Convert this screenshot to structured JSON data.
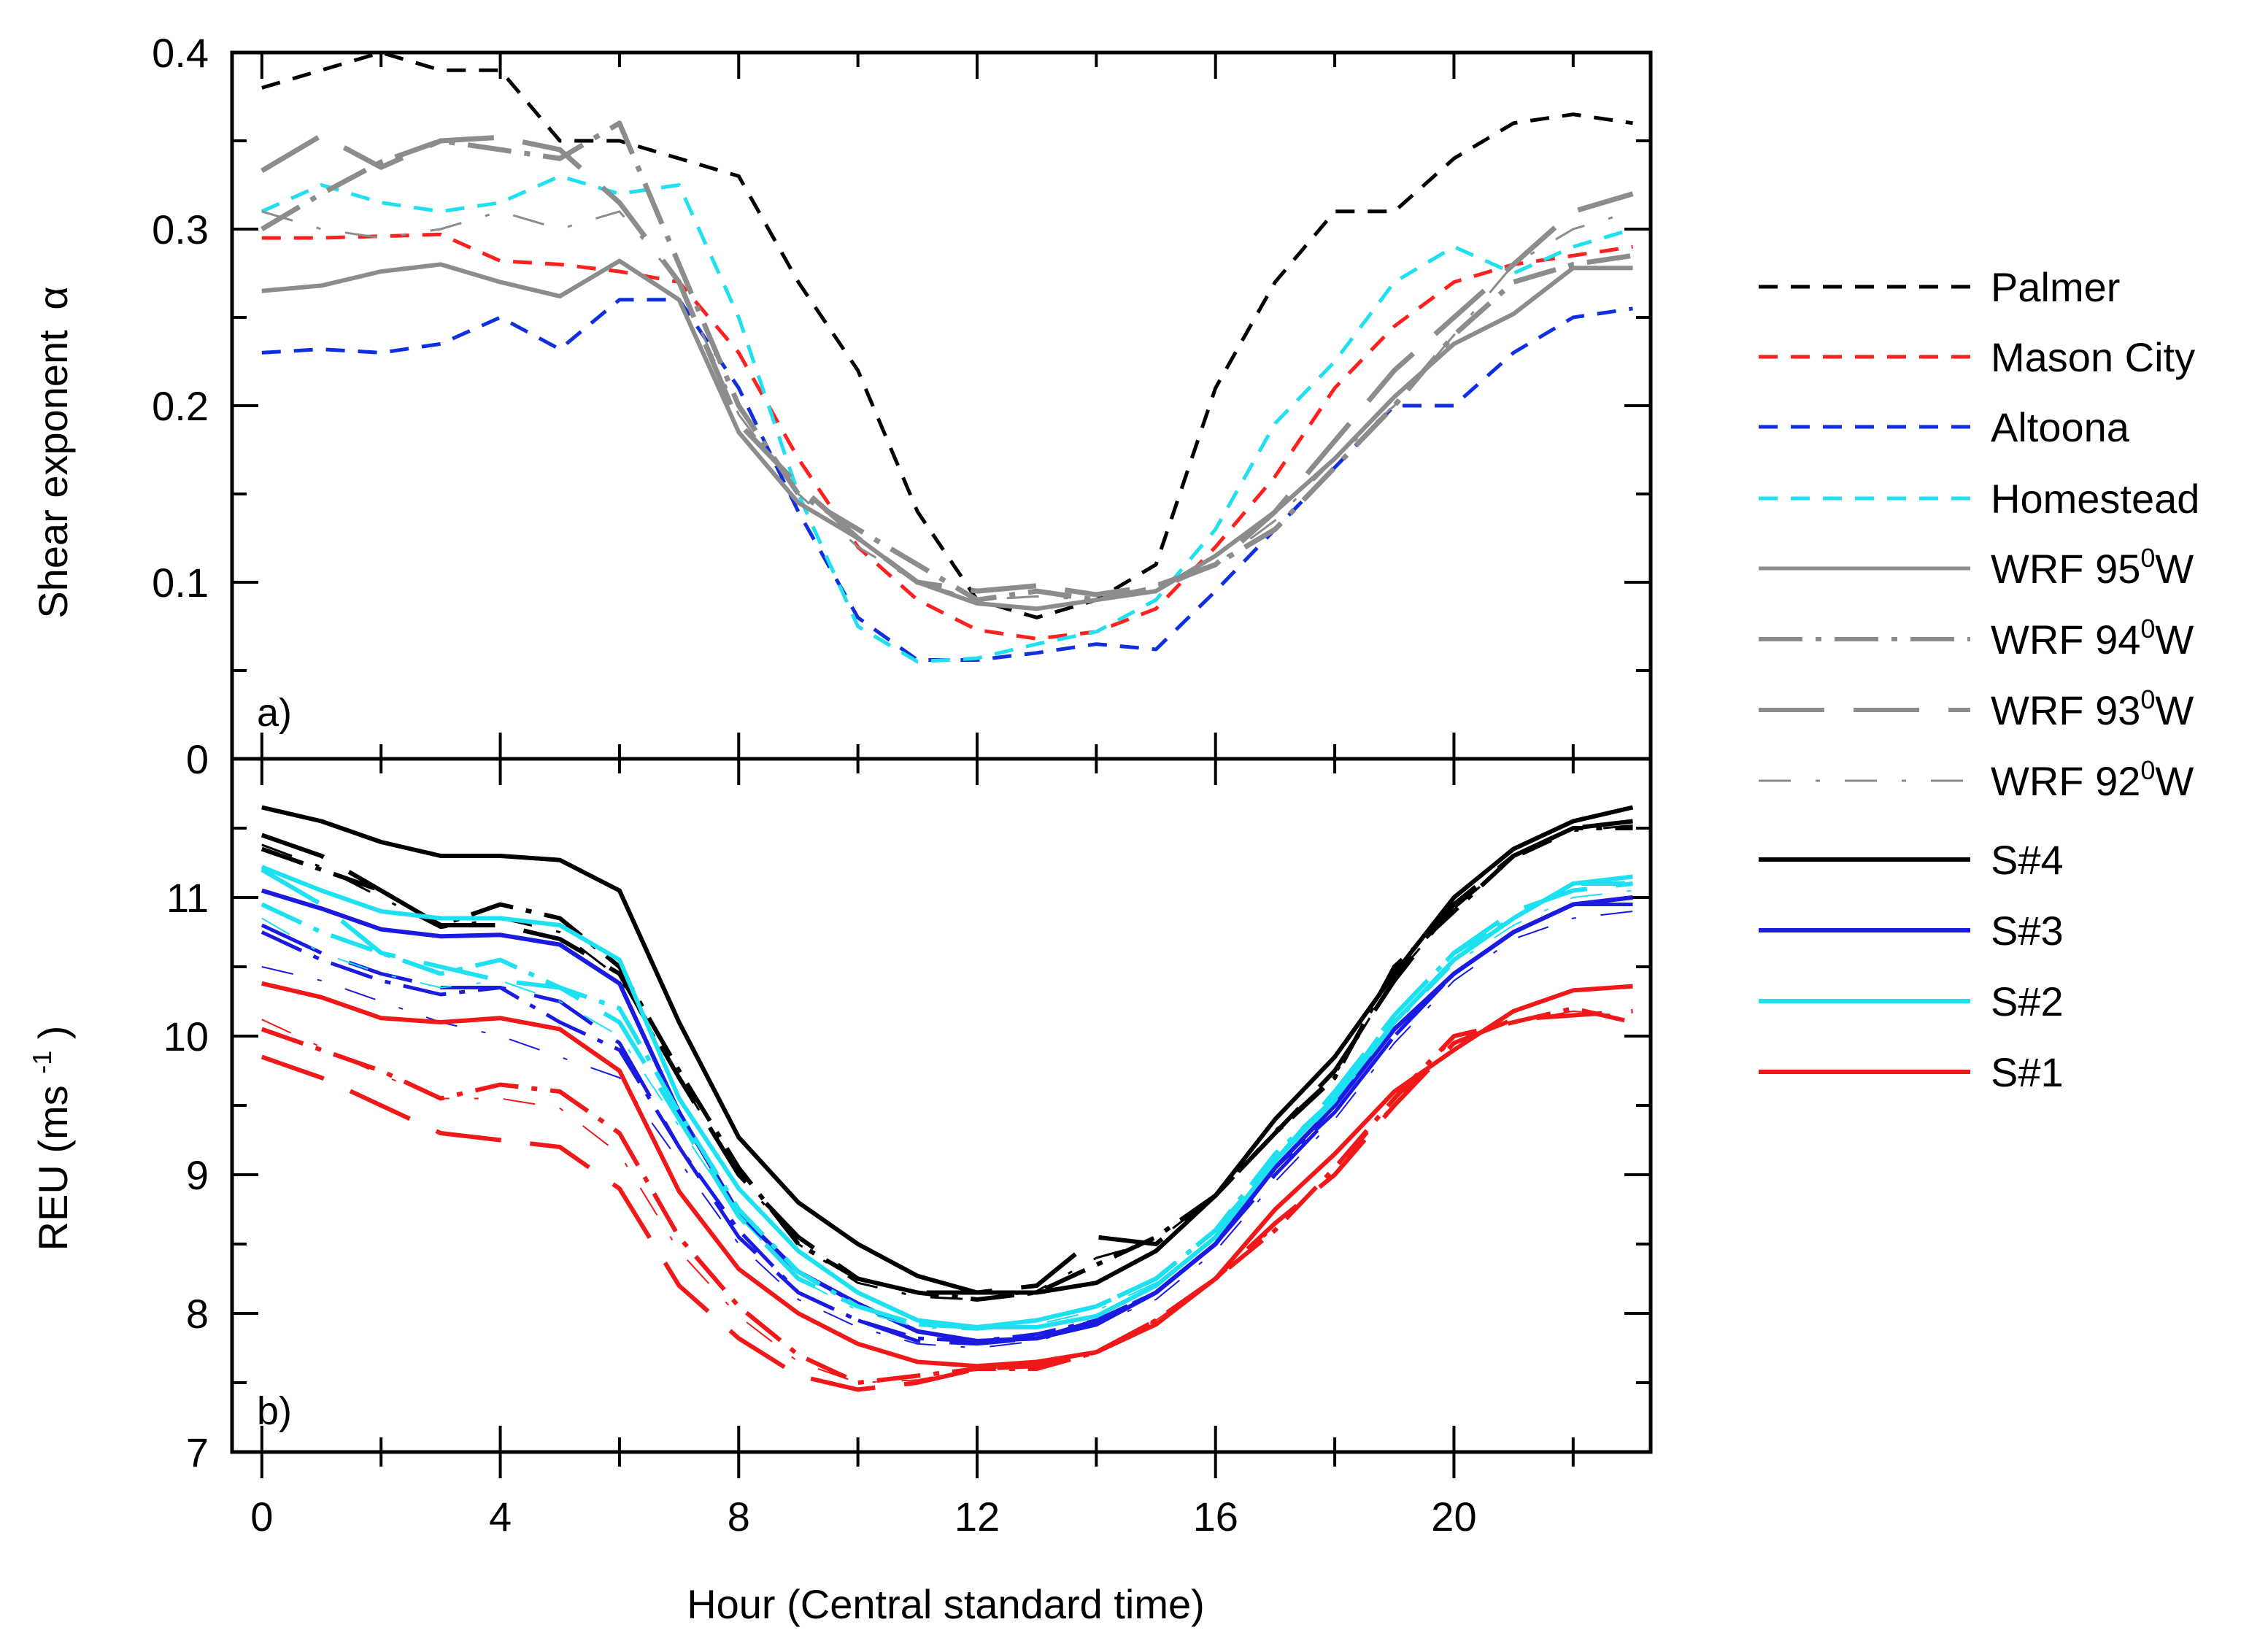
{
  "chart_data": [
    {
      "id": "a",
      "type": "line",
      "panel_label": "a)",
      "ylabel": "Shear exponent α",
      "xlabel": "Hour (Central standard time)",
      "xlim": [
        -0.5,
        23.3
      ],
      "ylim": [
        0,
        0.4
      ],
      "yticks": [
        "0",
        "0.1",
        "0.2",
        "0.3",
        "0.4"
      ],
      "x": [
        0,
        1,
        2,
        3,
        4,
        5,
        6,
        7,
        8,
        9,
        10,
        11,
        12,
        13,
        14,
        15,
        16,
        17,
        18,
        19,
        20,
        21,
        22,
        23
      ],
      "series": [
        {
          "name": "Palmer",
          "color": "#000000",
          "style": "dash",
          "values": [
            0.38,
            0.39,
            0.4,
            0.39,
            0.39,
            0.35,
            0.35,
            0.34,
            0.33,
            0.27,
            0.22,
            0.14,
            0.09,
            0.08,
            0.09,
            0.11,
            0.21,
            0.27,
            0.31,
            0.31,
            0.34,
            0.36,
            0.365,
            0.36
          ]
        },
        {
          "name": "Mason City",
          "color": "#ff2020",
          "style": "dash",
          "values": [
            0.295,
            0.295,
            0.296,
            0.297,
            0.282,
            0.28,
            0.276,
            0.27,
            0.23,
            0.17,
            0.12,
            0.09,
            0.073,
            0.068,
            0.072,
            0.085,
            0.12,
            0.16,
            0.21,
            0.245,
            0.27,
            0.28,
            0.285,
            0.29
          ]
        },
        {
          "name": "Altoona",
          "color": "#1030e0",
          "style": "dash",
          "values": [
            0.23,
            0.232,
            0.23,
            0.235,
            0.25,
            0.232,
            0.26,
            0.26,
            0.21,
            0.14,
            0.08,
            0.056,
            0.056,
            0.06,
            0.065,
            0.062,
            0.095,
            0.13,
            0.165,
            0.2,
            0.2,
            0.23,
            0.25,
            0.255
          ]
        },
        {
          "name": "Homestead",
          "color": "#20e0f0",
          "style": "dash",
          "values": [
            0.31,
            0.325,
            0.315,
            0.31,
            0.315,
            0.33,
            0.32,
            0.325,
            0.25,
            0.15,
            0.075,
            0.055,
            0.057,
            0.065,
            0.072,
            0.09,
            0.13,
            0.19,
            0.225,
            0.27,
            0.29,
            0.275,
            0.29,
            0.3
          ]
        },
        {
          "name": "WRF 95°W",
          "color": "#8c8c8c",
          "style": "solid",
          "width": 6,
          "values": [
            0.265,
            0.268,
            0.276,
            0.28,
            0.27,
            0.262,
            0.282,
            0.26,
            0.185,
            0.145,
            0.125,
            0.1,
            0.088,
            0.085,
            0.09,
            0.095,
            0.115,
            0.14,
            0.17,
            0.205,
            0.235,
            0.252,
            0.278,
            0.278
          ]
        },
        {
          "name": "WRF 94°W",
          "color": "#8c8c8c",
          "style": "dashdot",
          "width": 7,
          "values": [
            0.3,
            0.32,
            0.338,
            0.35,
            0.345,
            0.34,
            0.36,
            0.28,
            0.2,
            0.15,
            0.13,
            0.11,
            0.09,
            0.095,
            0.09,
            0.097,
            0.11,
            0.13,
            0.165,
            0.2,
            0.24,
            0.27,
            0.28,
            0.285
          ]
        },
        {
          "name": "WRF 93°W",
          "color": "#8c8c8c",
          "style": "longdash",
          "width": 7,
          "values": [
            0.333,
            0.353,
            0.335,
            0.35,
            0.352,
            0.345,
            0.315,
            0.27,
            0.19,
            0.155,
            0.125,
            0.1,
            0.095,
            0.098,
            0.093,
            0.098,
            0.11,
            0.14,
            0.18,
            0.22,
            0.25,
            0.28,
            0.31,
            0.32
          ]
        },
        {
          "name": "WRF 92°W",
          "color": "#8c8c8c",
          "style": "sparse",
          "width": 3,
          "values": [
            0.31,
            0.3,
            0.295,
            0.3,
            0.31,
            0.3,
            0.31,
            0.27,
            0.195,
            0.15,
            0.12,
            0.1,
            0.09,
            0.092,
            0.09,
            0.095,
            0.11,
            0.135,
            0.17,
            0.2,
            0.24,
            0.28,
            0.3,
            0.31
          ]
        }
      ]
    },
    {
      "id": "b",
      "type": "line",
      "panel_label": "b)",
      "ylabel": "REU (ms⁻¹)",
      "xlabel": "Hour (Central standard time)",
      "xlim": [
        -0.5,
        23.3
      ],
      "ylim": [
        7,
        12
      ],
      "yticks": [
        "7",
        "8",
        "9",
        "10",
        "11"
      ],
      "xticks": [
        "0",
        "4",
        "8",
        "12",
        "16",
        "20"
      ],
      "x": [
        0,
        1,
        2,
        3,
        4,
        5,
        6,
        7,
        8,
        9,
        10,
        11,
        12,
        13,
        14,
        15,
        16,
        17,
        18,
        19,
        20,
        21,
        22,
        23
      ],
      "series": [
        {
          "name": "S#4 / WRF 95°W",
          "color": "#000000",
          "style": "solid",
          "width": 6,
          "values": [
            11.65,
            11.55,
            11.4,
            11.3,
            11.3,
            11.27,
            11.05,
            10.1,
            9.27,
            8.8,
            8.5,
            8.27,
            8.15,
            8.15,
            8.22,
            8.45,
            8.85,
            9.4,
            9.85,
            10.45,
            11.0,
            11.35,
            11.55,
            11.65
          ]
        },
        {
          "name": "S#4 / WRF 94°W",
          "color": "#000000",
          "style": "dashdot",
          "width": 6,
          "values": [
            11.35,
            11.2,
            11.05,
            10.8,
            10.95,
            10.85,
            10.5,
            9.75,
            9.05,
            8.5,
            8.25,
            8.15,
            8.1,
            8.15,
            8.35,
            8.55,
            8.85,
            9.3,
            9.7,
            10.5,
            10.9,
            11.3,
            11.5,
            11.5
          ]
        },
        {
          "name": "S#4 / WRF 93°W",
          "color": "#000000",
          "style": "longdash",
          "width": 6,
          "values": [
            11.45,
            11.3,
            11.05,
            10.8,
            10.8,
            10.7,
            10.45,
            9.7,
            9.0,
            8.55,
            8.25,
            8.15,
            8.15,
            8.2,
            8.55,
            8.5,
            8.85,
            9.3,
            9.75,
            10.4,
            10.95,
            11.3,
            11.5,
            11.55
          ]
        },
        {
          "name": "S#4 / WRF 92°W",
          "color": "#000000",
          "style": "sparse",
          "width": 3,
          "values": [
            11.38,
            11.22,
            11.0,
            10.78,
            10.85,
            10.75,
            10.42,
            9.7,
            9.0,
            8.5,
            8.22,
            8.12,
            8.1,
            8.16,
            8.4,
            8.52,
            8.85,
            9.32,
            9.72,
            10.42,
            10.92,
            11.28,
            11.48,
            11.52
          ]
        },
        {
          "name": "S#3 / WRF 95°W",
          "color": "#1a1ae0",
          "style": "solid",
          "width": 6,
          "values": [
            11.05,
            10.92,
            10.77,
            10.72,
            10.73,
            10.66,
            10.38,
            9.45,
            8.72,
            8.3,
            8.07,
            7.87,
            7.8,
            7.82,
            7.92,
            8.15,
            8.5,
            9.05,
            9.5,
            10.05,
            10.45,
            10.75,
            10.95,
            11.0
          ]
        },
        {
          "name": "S#3 / WRF 94°W",
          "color": "#1a1ae0",
          "style": "dashdot",
          "width": 5,
          "values": [
            10.75,
            10.55,
            10.4,
            10.3,
            10.35,
            10.1,
            9.9,
            9.2,
            8.6,
            8.15,
            7.95,
            7.82,
            7.8,
            7.85,
            7.95,
            8.15,
            8.5,
            9.05,
            9.45,
            10.0,
            10.45,
            10.75,
            10.95,
            10.95
          ]
        },
        {
          "name": "S#3 / WRF 93°W",
          "color": "#1a1ae0",
          "style": "longdash",
          "width": 5,
          "values": [
            10.8,
            10.6,
            10.45,
            10.35,
            10.35,
            10.25,
            9.95,
            9.2,
            8.55,
            8.15,
            7.95,
            7.8,
            7.78,
            7.82,
            7.95,
            8.15,
            8.5,
            9.0,
            9.45,
            10.0,
            10.45,
            10.75,
            10.95,
            10.95
          ]
        },
        {
          "name": "S#3 / WRF 92°W",
          "color": "#1a1ae0",
          "style": "sparse",
          "width": 2,
          "values": [
            10.5,
            10.4,
            10.25,
            10.1,
            10.0,
            9.85,
            9.7,
            9.1,
            8.5,
            8.1,
            7.9,
            7.78,
            7.75,
            7.8,
            7.92,
            8.1,
            8.45,
            8.95,
            9.4,
            9.95,
            10.4,
            10.7,
            10.85,
            10.9
          ]
        },
        {
          "name": "S#2 / WRF 95°W",
          "color": "#1de0f0",
          "style": "solid",
          "width": 6,
          "values": [
            11.22,
            11.05,
            10.9,
            10.85,
            10.85,
            10.8,
            10.55,
            9.55,
            8.9,
            8.45,
            8.15,
            7.95,
            7.9,
            7.9,
            7.98,
            8.2,
            8.55,
            9.1,
            9.55,
            10.1,
            10.55,
            10.85,
            11.1,
            11.15
          ]
        },
        {
          "name": "S#2 / WRF 94°W",
          "color": "#1de0f0",
          "style": "dashdot",
          "width": 6,
          "values": [
            10.95,
            10.75,
            10.6,
            10.45,
            10.55,
            10.35,
            10.2,
            9.45,
            8.75,
            8.3,
            8.05,
            7.92,
            7.9,
            7.95,
            8.05,
            8.25,
            8.6,
            9.15,
            9.55,
            10.15,
            10.6,
            10.85,
            11.1,
            11.1
          ]
        },
        {
          "name": "S#2 / WRF 93°W",
          "color": "#1de0f0",
          "style": "longdash",
          "width": 6,
          "values": [
            11.2,
            10.95,
            10.6,
            10.5,
            10.4,
            10.35,
            10.1,
            9.4,
            8.7,
            8.25,
            8.05,
            7.92,
            7.9,
            7.95,
            8.05,
            8.25,
            8.6,
            9.1,
            9.6,
            10.15,
            10.6,
            10.9,
            11.05,
            11.1
          ]
        },
        {
          "name": "S#2 / WRF 92°W",
          "color": "#1de0f0",
          "style": "sparse",
          "width": 2,
          "values": [
            10.85,
            10.6,
            10.45,
            10.35,
            10.4,
            10.25,
            10.0,
            9.35,
            8.7,
            8.25,
            8.02,
            7.9,
            7.88,
            7.92,
            8.02,
            8.22,
            8.55,
            9.08,
            9.52,
            10.08,
            10.52,
            10.8,
            11.0,
            11.05
          ]
        },
        {
          "name": "S#1 / WRF 95°W",
          "color": "#f01818",
          "style": "solid",
          "width": 6,
          "values": [
            10.38,
            10.28,
            10.13,
            10.1,
            10.13,
            10.05,
            9.75,
            8.88,
            8.32,
            8.0,
            7.78,
            7.65,
            7.62,
            7.65,
            7.72,
            7.92,
            8.25,
            8.75,
            9.15,
            9.6,
            9.9,
            10.18,
            10.33,
            10.36
          ]
        },
        {
          "name": "S#1 / WRF 94°W",
          "color": "#f01818",
          "style": "dashdot",
          "width": 6,
          "values": [
            10.05,
            9.9,
            9.75,
            9.55,
            9.65,
            9.6,
            9.3,
            8.55,
            8.05,
            7.7,
            7.5,
            7.55,
            7.6,
            7.6,
            7.72,
            7.95,
            8.25,
            8.6,
            9.05,
            9.55,
            10.0,
            10.1,
            10.2,
            10.1
          ]
        },
        {
          "name": "S#1 / WRF 93°W",
          "color": "#f01818",
          "style": "longdash",
          "width": 6,
          "values": [
            9.85,
            9.7,
            9.5,
            9.3,
            9.25,
            9.2,
            8.9,
            8.2,
            7.82,
            7.55,
            7.45,
            7.5,
            7.6,
            7.62,
            7.72,
            7.95,
            8.25,
            8.65,
            9.0,
            9.5,
            9.95,
            10.12,
            10.15,
            10.18
          ]
        },
        {
          "name": "S#1 / WRF 92°W",
          "color": "#f01818",
          "style": "sparse",
          "width": 2,
          "values": [
            10.12,
            9.92,
            9.72,
            9.55,
            9.55,
            9.48,
            9.15,
            8.45,
            7.98,
            7.65,
            7.5,
            7.52,
            7.6,
            7.62,
            7.72,
            7.95,
            8.25,
            8.62,
            9.02,
            9.52,
            9.98,
            10.1,
            10.18,
            10.14
          ]
        }
      ]
    }
  ],
  "legend": {
    "items": [
      {
        "label": "Palmer",
        "color": "#000000",
        "style": "dash",
        "width": 5
      },
      {
        "label": "Mason City",
        "color": "#ff2020",
        "style": "dash",
        "width": 5
      },
      {
        "label": "Altoona",
        "color": "#1030e0",
        "style": "dash",
        "width": 5
      },
      {
        "label": "Homestead",
        "color": "#20e0f0",
        "style": "dash",
        "width": 5
      },
      {
        "label": "WRF 95",
        "deg": "0",
        "suffix": "W",
        "color": "#8c8c8c",
        "style": "solid",
        "width": 5
      },
      {
        "label": "WRF 94",
        "deg": "0",
        "suffix": "W",
        "color": "#8c8c8c",
        "style": "dashdot",
        "width": 6
      },
      {
        "label": "WRF 93",
        "deg": "0",
        "suffix": "W",
        "color": "#8c8c8c",
        "style": "longdash",
        "width": 6
      },
      {
        "label": "WRF 92",
        "deg": "0",
        "suffix": "W",
        "color": "#8c8c8c",
        "style": "sparse",
        "width": 3
      },
      {
        "label": "S#4",
        "color": "#000000",
        "style": "solid",
        "width": 6
      },
      {
        "label": "S#3",
        "color": "#1a1ae0",
        "style": "solid",
        "width": 6
      },
      {
        "label": "S#2",
        "color": "#1de0f0",
        "style": "solid",
        "width": 6
      },
      {
        "label": "S#1",
        "color": "#f01818",
        "style": "solid",
        "width": 6
      }
    ]
  },
  "axes": {
    "a_ylabel": "Shear exponent",
    "a_ylabel_symbol": "α",
    "b_ylabel_main": "REU (ms",
    "b_ylabel_sup": "-1",
    "b_ylabel_close": ")",
    "xlabel": "Hour (Central standard time)"
  }
}
